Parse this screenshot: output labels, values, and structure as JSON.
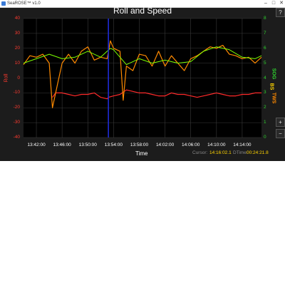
{
  "window": {
    "title": "SeaROSE™ v1.0",
    "minimize": "–",
    "maximize": "□",
    "close": "✕"
  },
  "toolbar": {
    "help_label": "?",
    "zoom_in_label": "+",
    "zoom_out_label": "−"
  },
  "status": {
    "cursor_label": "Cursor:",
    "cursor_value": "14:16:02.1",
    "dtime_label": "DTime:",
    "dtime_value": "00:24:21.8"
  },
  "colors": {
    "roll": "#ff2a2a",
    "sog": "#ff8a00",
    "bs": "#7cff00",
    "tws": "#ff8a00",
    "cursor_line": "#1e2bd6"
  },
  "chart_data": {
    "type": "line",
    "title": "Roll and Speed",
    "xlabel": "Time",
    "ylabel_left": "Roll",
    "ylabel_right": [
      "SOG",
      "BS",
      "TWS"
    ],
    "ylabel_right_colors": [
      "#2fd12f",
      "#ffd400",
      "#ff8a00"
    ],
    "x_ticks": [
      "13:42:00",
      "13:46:00",
      "13:50:00",
      "13:54:00",
      "13:58:00",
      "14:02:00",
      "14:06:00",
      "14:10:00",
      "14:14:00"
    ],
    "x_tick_minutes": [
      2,
      6,
      10,
      14,
      18,
      22,
      26,
      30,
      34
    ],
    "xlim_minutes": [
      0,
      37
    ],
    "y_left_ticks": [
      40,
      30,
      20,
      10,
      0,
      -10,
      -20,
      -30,
      -40
    ],
    "ylim_left": [
      -40,
      40
    ],
    "y_right_ticks": [
      8,
      7,
      6,
      5,
      4,
      3,
      2,
      1,
      0
    ],
    "ylim_right": [
      0,
      8
    ],
    "cursor_minute": 13.2,
    "series": [
      {
        "name": "Roll",
        "axis": "left",
        "color": "#ff2a2a",
        "x": [
          4.5,
          5,
          6,
          7,
          8,
          9,
          10,
          11,
          12,
          13,
          13.2,
          14,
          15,
          16,
          17,
          18,
          19,
          20,
          21,
          22,
          23,
          24,
          25,
          26,
          27,
          28,
          29,
          30,
          31,
          32,
          33,
          34,
          35,
          36,
          37
        ],
        "y": [
          -13,
          -10,
          -10,
          -11,
          -12,
          -11,
          -11,
          -10,
          -13,
          -14,
          -13,
          -12,
          -11,
          -8,
          -9,
          -10,
          -10,
          -11,
          -12,
          -12,
          -10,
          -11,
          -11,
          -12,
          -13,
          -12,
          -11,
          -10,
          -11,
          -12,
          -12,
          -11,
          -11,
          -10,
          -10
        ]
      },
      {
        "name": "TWS",
        "axis": "right",
        "color": "#ff8a00",
        "x": [
          0,
          1,
          2,
          3,
          4,
          4.5,
          5,
          5.5,
          6,
          7,
          8,
          9,
          10,
          11,
          12,
          13,
          13.5,
          14,
          15,
          15.5,
          16,
          17,
          18,
          19,
          20,
          21,
          22,
          23,
          24,
          25,
          26,
          27,
          28,
          29,
          30,
          31,
          32,
          33,
          34,
          35,
          36,
          37
        ],
        "y": [
          4.9,
          5.5,
          5.4,
          5.6,
          5.0,
          2.0,
          3.0,
          4.0,
          5.0,
          5.6,
          5.0,
          5.8,
          6.1,
          5.2,
          5.4,
          5.3,
          6.5,
          6.0,
          5.8,
          2.5,
          4.8,
          4.5,
          5.6,
          5.5,
          4.8,
          5.8,
          4.8,
          5.5,
          5.0,
          4.5,
          5.3,
          5.5,
          5.8,
          6.1,
          6.0,
          6.2,
          5.6,
          5.5,
          5.3,
          5.4,
          5.0,
          5.4
        ]
      },
      {
        "name": "BS",
        "axis": "right",
        "color": "#7cff00",
        "x": [
          0,
          2,
          4,
          6,
          8,
          10,
          12,
          13.5,
          14,
          16,
          18,
          20,
          22,
          24,
          26,
          28,
          30,
          32,
          34,
          36,
          37
        ],
        "y": [
          5.0,
          5.3,
          5.6,
          5.3,
          5.4,
          5.8,
          5.4,
          6.0,
          5.9,
          4.9,
          5.3,
          5.0,
          5.2,
          5.0,
          5.1,
          5.8,
          6.1,
          5.9,
          5.4,
          5.3,
          5.5
        ]
      }
    ]
  }
}
